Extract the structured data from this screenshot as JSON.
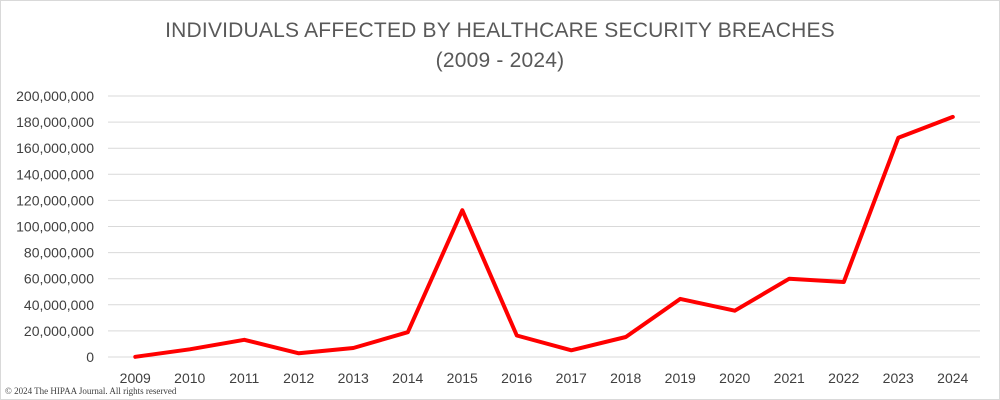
{
  "chart_data": {
    "type": "line",
    "title_line1": "INDIVIDUALS AFFECTED BY HEALTHCARE SECURITY BREACHES",
    "title_line2": "(2009 - 2024)",
    "xlabel": "",
    "ylabel": "",
    "categories": [
      "2009",
      "2010",
      "2011",
      "2012",
      "2013",
      "2014",
      "2015",
      "2016",
      "2017",
      "2018",
      "2019",
      "2020",
      "2021",
      "2022",
      "2023",
      "2024"
    ],
    "series": [
      {
        "values": [
          135000,
          5900000,
          13200000,
          2800000,
          6900000,
          19000000,
          112500000,
          16500000,
          5100000,
          15300000,
          44500000,
          35500000,
          60000000,
          57500000,
          168000000,
          184000000
        ],
        "color": "#ff0000"
      }
    ],
    "yticks": [
      "0",
      "20,000,000",
      "40,000,000",
      "60,000,000",
      "80,000,000",
      "100,000,000",
      "120,000,000",
      "140,000,000",
      "160,000,000",
      "180,000,000",
      "200,000,000"
    ],
    "ylim": [
      0,
      200000000
    ],
    "grid": true,
    "legend": "none",
    "gridline_color": "#d9d9d9"
  },
  "copyright": "© 2024 The HIPAA Journal. All rights reserved"
}
